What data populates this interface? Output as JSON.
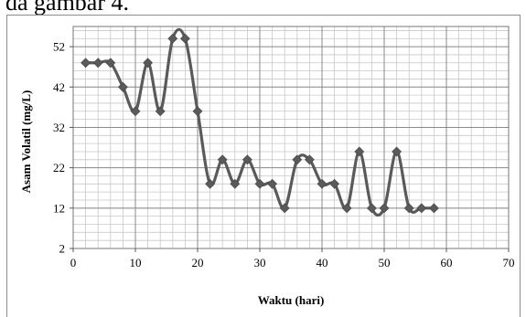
{
  "caption_fragment": "da gambar 4.",
  "chart_data": {
    "type": "line",
    "xlabel": "Waktu (hari)",
    "ylabel": "Asam Volatil (mg/L)",
    "xlim": [
      0,
      70
    ],
    "ylim": [
      2,
      57
    ],
    "x_ticks": [
      0,
      10,
      20,
      30,
      40,
      50,
      60,
      70
    ],
    "y_ticks": [
      2,
      12,
      22,
      32,
      42,
      52
    ],
    "grid": true,
    "legend": "none",
    "line_color": "#5a5a5a",
    "marker": "diamond",
    "series": [
      {
        "x": [
          2,
          4,
          6,
          8,
          10,
          12,
          14,
          16,
          18,
          20,
          22,
          24,
          26,
          28,
          30,
          32,
          34,
          36,
          38,
          40,
          42,
          44,
          46,
          48,
          50,
          52,
          54,
          56,
          58
        ],
        "y": [
          48,
          48,
          48,
          42,
          36,
          48,
          36,
          54,
          54,
          36,
          18,
          24,
          18,
          24,
          18,
          18,
          12,
          24,
          24,
          18,
          18,
          12,
          26,
          12,
          12,
          26,
          12,
          12,
          12
        ]
      }
    ]
  }
}
